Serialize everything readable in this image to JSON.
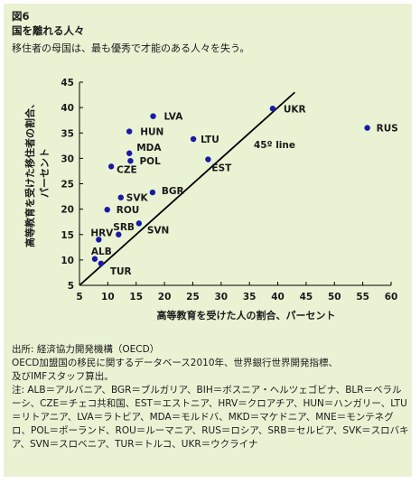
{
  "figure": {
    "label": "図6",
    "title": "国を離れる人々",
    "subtitle": "移住者の母国は、最も優秀で才能のある人々を失う。"
  },
  "chart_data": {
    "type": "scatter",
    "xlabel": "高等教育を受けた人の割合、パーセント",
    "ylabel_lines": [
      "高等教育を受けた移住者の割合、",
      "パーセント"
    ],
    "xlim": [
      5,
      60
    ],
    "ylim": [
      5,
      45
    ],
    "x_ticks": [
      5,
      10,
      15,
      20,
      25,
      30,
      35,
      40,
      45,
      50,
      55,
      60
    ],
    "y_ticks": [
      5,
      10,
      15,
      20,
      25,
      30,
      35,
      40,
      45
    ],
    "point_color": "#1a1aa6",
    "reference_line": {
      "label": "45º line",
      "from": [
        5,
        5
      ],
      "to": [
        43,
        43
      ]
    },
    "points": [
      {
        "label": "LVA",
        "x": 18.0,
        "y": 38.3
      },
      {
        "label": "HUN",
        "x": 13.8,
        "y": 35.3
      },
      {
        "label": "MDA",
        "x": 13.8,
        "y": 31.0
      },
      {
        "label": "POL",
        "x": 14.0,
        "y": 29.5
      },
      {
        "label": "CZE",
        "x": 10.6,
        "y": 28.4
      },
      {
        "label": "LTU",
        "x": 25.1,
        "y": 33.8
      },
      {
        "label": "EST",
        "x": 27.7,
        "y": 29.8
      },
      {
        "label": "UKR",
        "x": 39.1,
        "y": 39.8
      },
      {
        "label": "RUS",
        "x": 55.8,
        "y": 36.0
      },
      {
        "label": "BGR",
        "x": 17.9,
        "y": 23.3
      },
      {
        "label": "SVK",
        "x": 12.3,
        "y": 22.3
      },
      {
        "label": "ROU",
        "x": 9.9,
        "y": 19.9
      },
      {
        "label": "SVN",
        "x": 15.5,
        "y": 17.2
      },
      {
        "label": "SRB",
        "x": 11.9,
        "y": 15.0
      },
      {
        "label": "HRV",
        "x": 8.4,
        "y": 14.0
      },
      {
        "label": "ALB",
        "x": 7.7,
        "y": 10.2
      },
      {
        "label": "TUR",
        "x": 8.8,
        "y": 9.3
      }
    ]
  },
  "notes": {
    "source": "出所: 経済協力開発機構（OECD）",
    "data_desc": "OECD加盟国の移民に関するデータベース2010年、世界銀行世界開発指標、",
    "data_desc2": "及びIMFスタッフ算出。",
    "legend": "注: ALB＝アルバニア、BGR＝ブルガリア、BIH＝ボスニア・ヘルツェゴビナ、BLR＝ベラルーシ、CZE＝チェコ共和国、EST＝エストニア、HRV＝クロアチア、HUN＝ハンガリー、LTU＝リトアニア、LVA＝ラトビア、MDA＝モルドバ、MKD＝マケドニア、MNE＝モンテネグロ、POL＝ポーランド、ROU＝ルーマニア、RUS＝ロシア、SRB＝セルビア、SVK＝スロバキア、SVN＝スロベニア、TUR＝トルコ、UKR＝ウクライナ"
  }
}
